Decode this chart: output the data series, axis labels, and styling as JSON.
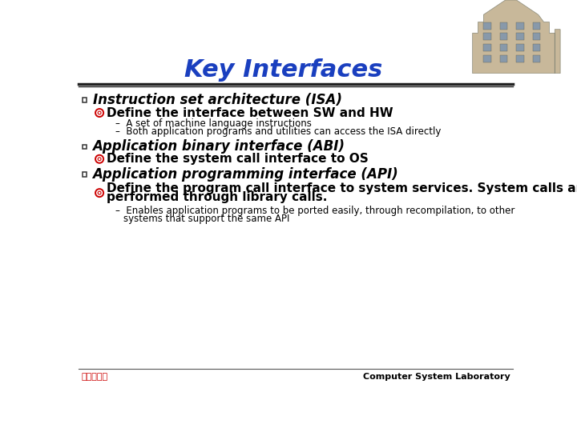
{
  "title": "Key Interfaces",
  "title_color": "#1a3fbf",
  "title_fontsize": 22,
  "bg_color": "#ffffff",
  "bullet1_main": "Instruction set architecture (ISA)",
  "bullet1_sub1": "Define the interface between SW and HW",
  "bullet1_sub1a": "A set of machine language instructions",
  "bullet1_sub1b": "Both application programs and utilities can access the ISA directly",
  "bullet2_main": "Application binary interface (ABI)",
  "bullet2_sub1": "Define the system call interface to OS",
  "bullet3_main": "Application programming interface (API)",
  "bullet3_sub1a": "Define the program call interface to system services. System calls are",
  "bullet3_sub1b": "performed through library calls.",
  "bullet3_sub2a": "Enables application programs to be ported easily, through recompilation, to other",
  "bullet3_sub2b": "systems that support the same API",
  "footer_left": "高麗大學校",
  "footer_right": "Computer System Laboratory",
  "footer_left_color": "#cc0000",
  "footer_right_color": "#000000",
  "main_bullet_color": "#000000",
  "sub_bullet_color": "#cc0000",
  "main_bullet_fontsize": 12,
  "sub_bullet_fontsize": 11,
  "sub_sub_fontsize": 8.5,
  "footer_fontsize": 8,
  "sq_bullet_size": 7
}
